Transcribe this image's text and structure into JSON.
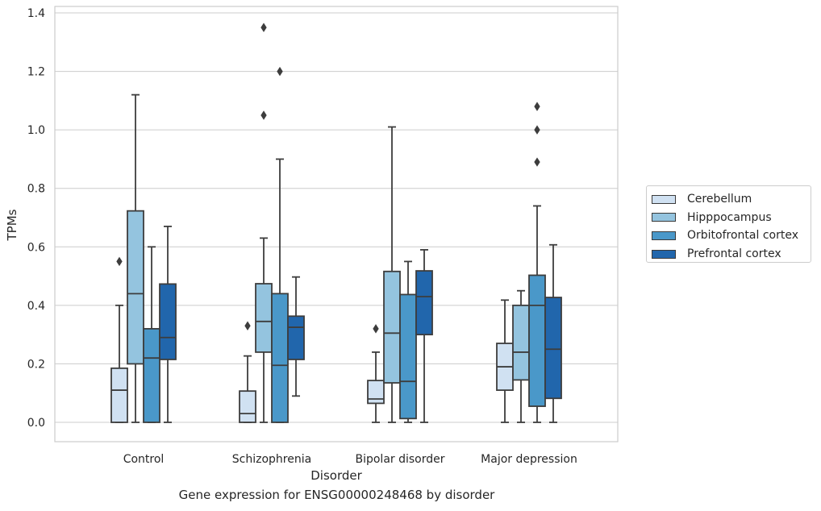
{
  "chart_data": {
    "type": "box",
    "title": "",
    "caption": "Gene expression for ENSG00000248468 by disorder",
    "xlabel": "Disorder",
    "ylabel": "TPMs",
    "ylim": [
      -0.065,
      1.42
    ],
    "yticks": [
      0.0,
      0.2,
      0.4,
      0.6,
      0.8,
      1.0,
      1.2,
      1.4
    ],
    "ytick_labels": [
      "0.0",
      "0.2",
      "0.4",
      "0.6",
      "0.8",
      "1.0",
      "1.2",
      "1.4"
    ],
    "grid": "horizontal",
    "legend_position": "right",
    "categories": [
      "Control",
      "Schizophrenia",
      "Bipolar disorder",
      "Major depression"
    ],
    "series": [
      {
        "name": "Cerebellum",
        "color": "#d0e1f2",
        "boxes": [
          {
            "whislo": 0.0,
            "q1": 0.0,
            "med": 0.11,
            "q3": 0.185,
            "whishi": 0.4,
            "fliers": [
              0.55
            ]
          },
          {
            "whislo": 0.0,
            "q1": 0.0,
            "med": 0.03,
            "q3": 0.107,
            "whishi": 0.227,
            "fliers": [
              0.33
            ]
          },
          {
            "whislo": 0.0,
            "q1": 0.065,
            "med": 0.08,
            "q3": 0.143,
            "whishi": 0.24,
            "fliers": [
              0.32
            ]
          },
          {
            "whislo": 0.0,
            "q1": 0.11,
            "med": 0.19,
            "q3": 0.27,
            "whishi": 0.418,
            "fliers": []
          }
        ]
      },
      {
        "name": "Hipppocampus",
        "color": "#94c4df",
        "boxes": [
          {
            "whislo": 0.0,
            "q1": 0.2,
            "med": 0.44,
            "q3": 0.723,
            "whishi": 1.12,
            "fliers": []
          },
          {
            "whislo": 0.0,
            "q1": 0.24,
            "med": 0.345,
            "q3": 0.474,
            "whishi": 0.63,
            "fliers": [
              1.05,
              1.35
            ]
          },
          {
            "whislo": 0.0,
            "q1": 0.135,
            "med": 0.305,
            "q3": 0.516,
            "whishi": 1.01,
            "fliers": []
          },
          {
            "whislo": 0.0,
            "q1": 0.145,
            "med": 0.24,
            "q3": 0.4,
            "whishi": 0.45,
            "fliers": []
          }
        ]
      },
      {
        "name": "Orbitofrontal cortex",
        "color": "#4a98c9",
        "boxes": [
          {
            "whislo": 0.0,
            "q1": 0.0,
            "med": 0.22,
            "q3": 0.32,
            "whishi": 0.6,
            "fliers": []
          },
          {
            "whislo": 0.0,
            "q1": 0.0,
            "med": 0.195,
            "q3": 0.44,
            "whishi": 0.9,
            "fliers": [
              1.2
            ]
          },
          {
            "whislo": 0.0,
            "q1": 0.013,
            "med": 0.14,
            "q3": 0.437,
            "whishi": 0.55,
            "fliers": []
          },
          {
            "whislo": 0.0,
            "q1": 0.055,
            "med": 0.4,
            "q3": 0.503,
            "whishi": 0.74,
            "fliers": [
              0.89,
              1.0,
              1.08
            ]
          }
        ]
      },
      {
        "name": "Prefrontal cortex",
        "color": "#2166ac",
        "boxes": [
          {
            "whislo": 0.0,
            "q1": 0.215,
            "med": 0.29,
            "q3": 0.473,
            "whishi": 0.67,
            "fliers": []
          },
          {
            "whislo": 0.09,
            "q1": 0.215,
            "med": 0.325,
            "q3": 0.363,
            "whishi": 0.497,
            "fliers": []
          },
          {
            "whislo": 0.0,
            "q1": 0.3,
            "med": 0.43,
            "q3": 0.518,
            "whishi": 0.59,
            "fliers": []
          },
          {
            "whislo": 0.0,
            "q1": 0.082,
            "med": 0.25,
            "q3": 0.427,
            "whishi": 0.607,
            "fliers": []
          }
        ]
      }
    ]
  }
}
